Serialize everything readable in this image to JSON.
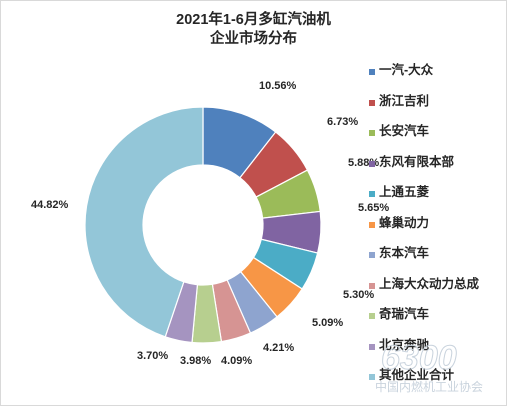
{
  "chart_data": {
    "type": "pie",
    "title_line1": "2021年1-6月多缸汽油机",
    "title_line2": "企业市场分布",
    "categories": [
      "一汽-大众",
      "浙江吉利",
      "长安汽车",
      "东风有限本部",
      "上通五菱",
      "蜂巢动力",
      "东本汽车",
      "上海大众动力总成",
      "奇瑞汽车",
      "北京奔驰",
      "其他企业合计"
    ],
    "values": [
      10.56,
      6.73,
      5.88,
      5.65,
      5.3,
      5.09,
      4.21,
      4.09,
      3.98,
      3.7,
      44.82
    ],
    "labels": [
      "10.56%",
      "6.73%",
      "5.88%",
      "5.65%",
      "5.30%",
      "5.09%",
      "4.21%",
      "4.09%",
      "3.98%",
      "3.70%",
      "44.82%"
    ],
    "colors": [
      "#4f81bd",
      "#c0504d",
      "#9bbb59",
      "#8064a2",
      "#4bacc6",
      "#f79646",
      "#8ea4cf",
      "#d69493",
      "#b7cf8f",
      "#a594c0",
      "#93c6d8"
    ],
    "legend_position": "right",
    "donut": true
  },
  "watermark": {
    "big": "6300",
    "small": "中国内燃机工业协会"
  }
}
